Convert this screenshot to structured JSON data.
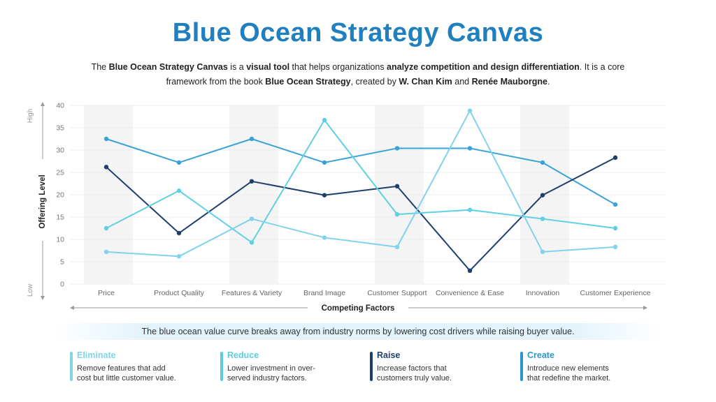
{
  "page": {
    "title": "Blue Ocean Strategy Canvas",
    "intro": {
      "t1": "The ",
      "b1": "Blue Ocean Strategy Canvas",
      "t2": " is a ",
      "b2": "visual tool",
      "t3": " that helps organizations ",
      "b3": "analyze competition and design differentiation",
      "t4": ". It is a core framework from the book ",
      "b4": "Blue Ocean Strategy",
      "t5": ", created by ",
      "b5": "W. Chan Kim",
      "t6": " and ",
      "b6": "Renée Mauborgne",
      "t7": "."
    },
    "caption": "The blue ocean value curve breaks away from industry norms by lowering cost drivers while raising buyer value."
  },
  "actions": [
    {
      "name": "Eliminate",
      "desc_line1": "Remove features that add",
      "desc_line2": "cost but little customer value.",
      "color": "#7fd4e6"
    },
    {
      "name": "Reduce",
      "desc_line1": "Lower investment in over-",
      "desc_line2": "served industry factors.",
      "color": "#5ccde0"
    },
    {
      "name": "Raise",
      "desc_line1": "Increase factors that",
      "desc_line2": "customers truly value.",
      "color": "#1e3f6e"
    },
    {
      "name": "Create",
      "desc_line1": "Introduce new elements",
      "desc_line2": "that redefine the market.",
      "color": "#2c97cf"
    }
  ],
  "chart_data": {
    "type": "line",
    "categories": [
      "Price",
      "Product Quality",
      "Features & Variety",
      "Brand Image",
      "Customer Support",
      "Convenience & Ease",
      "Innovation",
      "Customer Experience"
    ],
    "ylim": [
      0,
      40
    ],
    "yticks": [
      0,
      5,
      10,
      15,
      20,
      25,
      30,
      35,
      40
    ],
    "xlabel": "Competing Factors",
    "ylabel": "Offering Level",
    "y_high_label": "High",
    "y_low_label": "Low",
    "grid": true,
    "series": [
      {
        "color": "#3aa3d6",
        "values": [
          32.5,
          27.2,
          32.5,
          27.2,
          30.4,
          30.4,
          27.2,
          17.8
        ]
      },
      {
        "color": "#1e3f6e",
        "values": [
          26.2,
          11.4,
          23.0,
          19.9,
          21.9,
          3.0,
          19.9,
          28.3
        ]
      },
      {
        "color": "#5fd0e3",
        "values": [
          12.5,
          20.9,
          9.3,
          36.7,
          15.6,
          16.6,
          14.6,
          12.5
        ]
      },
      {
        "color": "#82d2ec",
        "values": [
          7.2,
          6.2,
          14.6,
          10.4,
          8.3,
          38.8,
          7.2,
          8.3
        ]
      }
    ]
  }
}
